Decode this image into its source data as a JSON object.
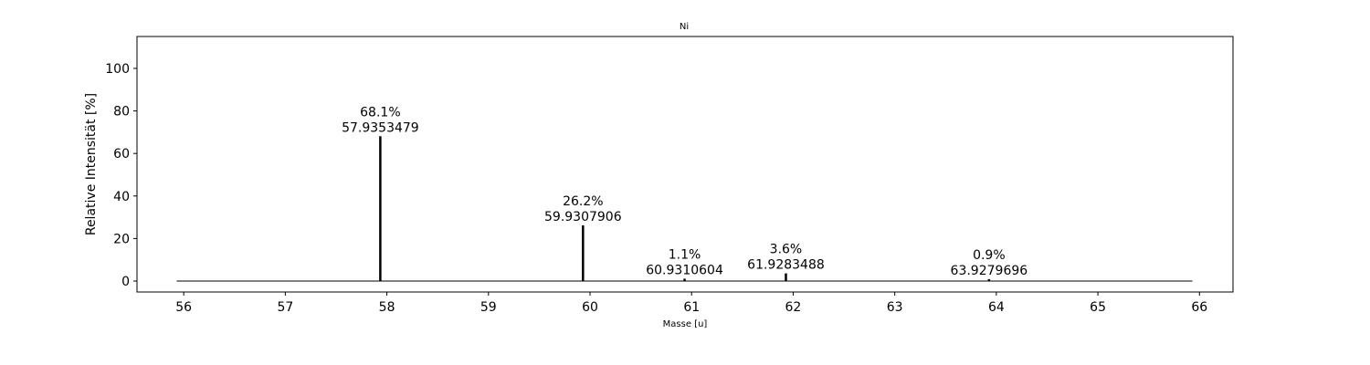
{
  "chart_data": {
    "type": "stem",
    "title": "Ni",
    "x_label": "Masse [u]",
    "y_label": "Relative Intensität [%]",
    "x": [
      57.9353479,
      59.9307906,
      60.9310604,
      61.9283488,
      63.9279696
    ],
    "values": [
      68.1,
      26.2,
      1.1,
      3.6,
      0.9
    ],
    "value_labels": [
      "68.1%",
      "26.2%",
      "1.1%",
      "3.6%",
      "0.9%"
    ],
    "color": "#000000",
    "baseline": {
      "xlim": [
        55.93,
        65.93
      ],
      "value": 0
    },
    "xlim": [
      55.54,
      66.33
    ],
    "xticks": [
      56,
      57,
      58,
      59,
      60,
      61,
      62,
      63,
      64,
      65,
      66
    ],
    "ylim": [
      -5.15,
      115
    ],
    "yticks": [
      0,
      20,
      40,
      60,
      80,
      100
    ],
    "grid": false
  }
}
